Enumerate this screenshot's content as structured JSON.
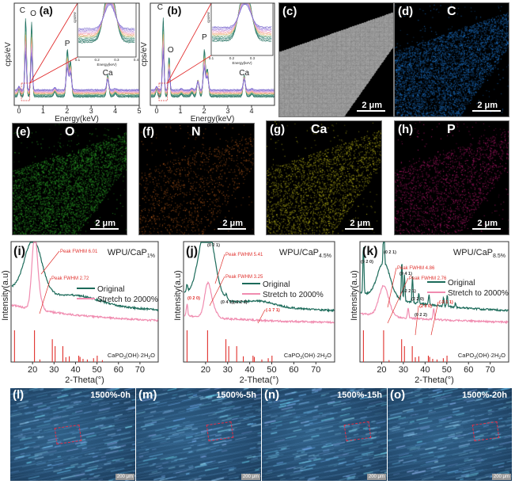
{
  "colors": {
    "original": "#1c6b5a",
    "stretch": "#f08cb0",
    "reference": "#e0302c",
    "annotation": "#e0302c",
    "axis": "#333333"
  },
  "eds": [
    {
      "panel": "(a)",
      "ylabel": "cps/eV",
      "xlabel": "Energy(keV)",
      "xticks": [
        "0",
        "1",
        "2",
        "3",
        "4",
        "5"
      ],
      "peaks": [
        "C",
        "O",
        "P",
        "Ca"
      ],
      "inset": {
        "ylabel": "cps/eV",
        "xlabel": "Energy(keV)",
        "xticks": [
          "0.1",
          "0.2",
          "0.3",
          "0.4"
        ]
      }
    },
    {
      "panel": "(b)",
      "ylabel": "cps/eV",
      "xlabel": "Energy(keV)",
      "xticks": [
        "0",
        "1",
        "2",
        "3",
        "4"
      ],
      "peaks": [
        "C",
        "O",
        "P",
        "Ca"
      ],
      "inset": {
        "ylabel": "cps/eV",
        "xlabel": "Energy(keV)",
        "xticks": [
          "0.1",
          "0.2",
          "0.3"
        ]
      }
    }
  ],
  "maps": [
    {
      "panel": "(c)",
      "element": "",
      "scale": "2 μm",
      "color": "#9a9a9a"
    },
    {
      "panel": "(d)",
      "element": "C",
      "scale": "2 μm",
      "color": "#1e78d2"
    },
    {
      "panel": "(e)",
      "element": "O",
      "scale": "2 μm",
      "color": "#2fb02a"
    },
    {
      "panel": "(f)",
      "element": "N",
      "scale": "2 μm",
      "color": "#c8641e"
    },
    {
      "panel": "(g)",
      "element": "Ca",
      "scale": "2 μm",
      "color": "#c8c31a"
    },
    {
      "panel": "(h)",
      "element": "P",
      "scale": "2 μm",
      "color": "#c81a78"
    }
  ],
  "chart_data": [
    {
      "type": "line",
      "panel": "(a)",
      "xlabel": "Energy(keV)",
      "ylabel": "cps/eV",
      "xlim": [
        -0.2,
        5
      ],
      "peak_labels": [
        {
          "label": "C",
          "x": 0.277
        },
        {
          "label": "O",
          "x": 0.525
        },
        {
          "label": "P",
          "x": 2.01
        },
        {
          "label": "Ca",
          "x": 3.69
        }
      ],
      "peaks_relative": [
        [
          0.277,
          1.0
        ],
        [
          0.525,
          0.95
        ],
        [
          0.0,
          0.1
        ],
        [
          1.49,
          0.06
        ],
        [
          2.01,
          0.6
        ],
        [
          2.14,
          0.45
        ],
        [
          3.69,
          0.28
        ],
        [
          4.01,
          0.04
        ]
      ]
    },
    {
      "type": "line",
      "panel": "(b)",
      "xlabel": "Energy(keV)",
      "ylabel": "cps/eV",
      "xlim": [
        -0.2,
        4.9
      ],
      "peak_labels": [
        {
          "label": "C",
          "x": 0.277
        },
        {
          "label": "O",
          "x": 0.525
        },
        {
          "label": "P",
          "x": 2.01
        },
        {
          "label": "Ca",
          "x": 3.69
        }
      ],
      "peaks_relative": [
        [
          0.277,
          1.0
        ],
        [
          0.525,
          0.52
        ],
        [
          0.0,
          0.1
        ],
        [
          1.04,
          0.03
        ],
        [
          1.49,
          0.05
        ],
        [
          1.74,
          0.22
        ],
        [
          2.01,
          0.6
        ],
        [
          2.14,
          0.35
        ],
        [
          3.69,
          0.28
        ],
        [
          4.01,
          0.03
        ]
      ]
    },
    {
      "type": "line",
      "panel": "(i)",
      "title": "WPU/CaP",
      "title_sub": "1%",
      "xlabel": "2-Theta(°)",
      "ylabel": "Intensity(a.u)",
      "xlim": [
        10,
        78.5
      ],
      "xticks": [
        "20",
        "30",
        "40",
        "50",
        "60",
        "70"
      ],
      "legend": "right",
      "series": [
        {
          "name": "Original",
          "peaks": [
            [
              20.3,
              0.62,
              4.0
            ],
            [
              42,
              0.08,
              10
            ]
          ],
          "baseline": 0.3
        },
        {
          "name": "Stretch to 2000%",
          "peaks": [
            [
              21.0,
              0.85,
              1.3
            ],
            [
              23.5,
              0.1,
              1.2
            ]
          ],
          "baseline": 0.22
        }
      ],
      "annotations": [
        "Peak FWHM 6.01",
        "Peak FWHM 2.72"
      ],
      "reference": {
        "label": "CaPO3(OH)·2H2O",
        "label_main": "CaPO",
        "label_sub1": "3",
        "label_mid": "(OH)·2H",
        "label_sub2": "2",
        "label_end": "O",
        "sticks": [
          [
            11.6,
            1.0
          ],
          [
            20.9,
            1.0
          ],
          [
            23.4,
            0.08
          ],
          [
            29.2,
            0.72
          ],
          [
            30.5,
            0.5
          ],
          [
            34.1,
            0.5
          ],
          [
            35.5,
            0.15
          ],
          [
            37.1,
            0.18
          ],
          [
            41.5,
            0.2
          ],
          [
            42.1,
            0.16
          ],
          [
            43.5,
            0.1
          ],
          [
            45.5,
            0.08
          ],
          [
            48.4,
            0.12
          ],
          [
            50.1,
            0.2
          ],
          [
            52.5,
            0.06
          ]
        ]
      }
    },
    {
      "type": "line",
      "panel": "(j)",
      "title": "WPU/CaP",
      "title_sub": "4.5%",
      "xlabel": "2-Theta(°)",
      "ylabel": "Intensity(a.u)",
      "xlim": [
        10,
        78.5
      ],
      "xticks": [
        "20",
        "30",
        "40",
        "50",
        "60",
        "70"
      ],
      "legend": "right",
      "series": [
        {
          "name": "Original",
          "peaks": [
            [
              20.5,
              0.85,
              3.4
            ],
            [
              11.6,
              0.08,
              0.3
            ],
            [
              29.3,
              0.05,
              0.4
            ],
            [
              45,
              0.05,
              6
            ]
          ],
          "baseline": 0.25
        },
        {
          "name": "Stretch to 2000%",
          "peaks": [
            [
              21.0,
              0.38,
              1.5
            ],
            [
              11.6,
              0.14,
              0.3
            ],
            [
              23.8,
              0.08,
              1.5
            ]
          ],
          "baseline": 0.1
        }
      ],
      "annotations": [
        "Peak FWHM 5.41",
        "Peak FWHM 3.25",
        "(0 2 1)",
        "(0 2 0)",
        "(0 4 1)(-2 2 1)",
        "(-1 7 1)"
      ],
      "reference": {
        "label": "CaPO3(OH)·2H2O",
        "label_main": "CaPO",
        "label_sub1": "3",
        "label_mid": "(OH)·2H",
        "label_sub2": "2",
        "label_end": "O",
        "sticks": [
          [
            11.6,
            1.0
          ],
          [
            20.9,
            1.0
          ],
          [
            29.2,
            0.72
          ],
          [
            30.5,
            0.5
          ],
          [
            34.1,
            0.5
          ],
          [
            37.1,
            0.18
          ],
          [
            41.5,
            0.2
          ],
          [
            42.1,
            0.16
          ],
          [
            45.5,
            0.08
          ],
          [
            48.4,
            0.12
          ],
          [
            50.1,
            0.2
          ]
        ]
      }
    },
    {
      "type": "line",
      "panel": "(k)",
      "title": "WPU/CaP",
      "title_sub": "8.5%",
      "xlabel": "2-Theta(°)",
      "ylabel": "Intensity(a.u)",
      "xlim": [
        10,
        78.5
      ],
      "xticks": [
        "20",
        "30",
        "40",
        "50",
        "60",
        "70"
      ],
      "legend": "right",
      "series": [
        {
          "name": "Original",
          "peaks": [
            [
              21,
              0.4,
              3
            ],
            [
              11.6,
              0.55,
              0.25
            ],
            [
              21.0,
              0.6,
              0.25
            ],
            [
              29.3,
              0.45,
              0.25
            ],
            [
              30.5,
              0.3,
              0.25
            ],
            [
              34.2,
              0.3,
              0.25
            ],
            [
              37.1,
              0.12,
              0.25
            ],
            [
              41.8,
              0.12,
              0.25
            ],
            [
              48.5,
              0.1,
              0.25
            ],
            [
              50.2,
              0.14,
              0.25
            ],
            [
              54,
              0.05,
              0.25
            ]
          ],
          "baseline": 0.25
        },
        {
          "name": "Stretch to 2000%",
          "peaks": [
            [
              21.0,
              0.35,
              2.2
            ],
            [
              32.2,
              0.12,
              0.3
            ],
            [
              44,
              0.13,
              0.3
            ]
          ],
          "baseline": 0.12
        }
      ],
      "annotations": [
        "Peak FWHM 4.86",
        "Peak FWHM 2.76",
        "(0 2 0)",
        "(0 2 1)",
        "(0 4 1)",
        "(-2 2 1)",
        "(2 2 0)",
        "(2 0 0)",
        "(0 2 2)",
        "(-3 1 1)"
      ],
      "reference": {
        "label": "CaPO3(OH)·2H2O",
        "label_main": "CaPO",
        "label_sub1": "3",
        "label_mid": "(OH)·2H",
        "label_sub2": "2",
        "label_end": "O",
        "sticks": [
          [
            11.6,
            1.0
          ],
          [
            20.9,
            1.0
          ],
          [
            23.4,
            0.06
          ],
          [
            29.2,
            0.72
          ],
          [
            30.5,
            0.5
          ],
          [
            34.1,
            0.5
          ],
          [
            35.5,
            0.15
          ],
          [
            37.1,
            0.18
          ],
          [
            41.5,
            0.2
          ],
          [
            42.1,
            0.16
          ],
          [
            43.5,
            0.1
          ],
          [
            45.5,
            0.08
          ],
          [
            48.4,
            0.12
          ],
          [
            50.1,
            0.2
          ]
        ]
      }
    }
  ],
  "micrographs": [
    {
      "panel": "(l)",
      "label": "1500%-0h",
      "scale": "200 μm"
    },
    {
      "panel": "(m)",
      "label": "1500%-5h",
      "scale": "200 μm"
    },
    {
      "panel": "(n)",
      "label": "1500%-15h",
      "scale": "200 μm"
    },
    {
      "panel": "(o)",
      "label": "1500%-20h",
      "scale": "200 μm"
    }
  ]
}
